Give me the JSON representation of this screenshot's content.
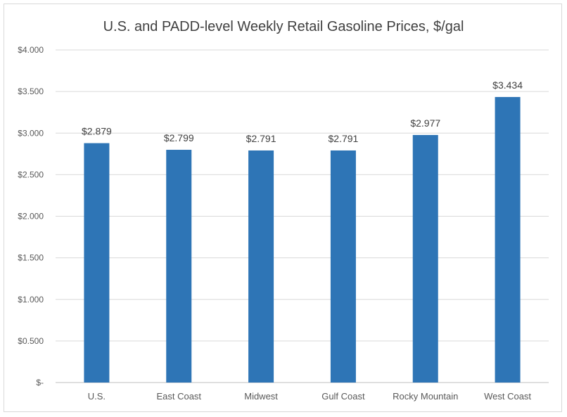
{
  "chart_data": {
    "type": "bar",
    "title": "U.S. and PADD-level Weekly Retail Gasoline Prices, $/gal",
    "xlabel": "",
    "ylabel": "",
    "categories": [
      "U.S.",
      "East Coast",
      "Midwest",
      "Gulf Coast",
      "Rocky Mountain",
      "West Coast"
    ],
    "values": [
      2.879,
      2.799,
      2.791,
      2.791,
      2.977,
      3.434
    ],
    "data_labels": [
      "$2.879",
      "$2.799",
      "$2.791",
      "$2.791",
      "$2.977",
      "$3.434"
    ],
    "ylim": [
      0,
      4
    ],
    "y_ticks": [
      0,
      0.5,
      1,
      1.5,
      2,
      2.5,
      3,
      3.5,
      4
    ],
    "y_tick_labels": [
      "$-",
      "$0.500",
      "$1.000",
      "$1.500",
      "$2.000",
      "$2.500",
      "$3.000",
      "$3.500",
      "$4.000"
    ],
    "grid": true,
    "legend": "none",
    "colors": {
      "bar": "#2e75b6",
      "grid": "#d9d9d9",
      "axis": "#bfbfbf"
    }
  }
}
